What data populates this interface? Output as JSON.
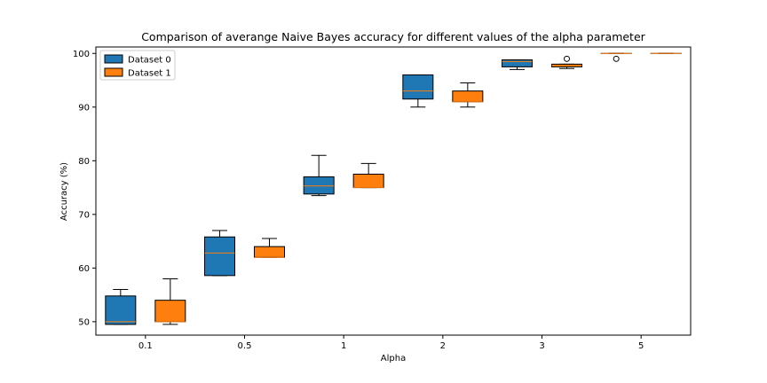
{
  "chart_data": {
    "type": "box",
    "title": "Comparison of averange Naive Bayes accuracy for different values of the alpha parameter",
    "xlabel": "Alpha",
    "ylabel": "Accuracy (%)",
    "categories": [
      "0.1",
      "0.5",
      "1",
      "2",
      "3",
      "5"
    ],
    "ylim": [
      47.5,
      101.2
    ],
    "yticks": [
      50,
      60,
      70,
      80,
      90,
      100
    ],
    "ytick_labels": [
      "50",
      "60",
      "70",
      "80",
      "90",
      "100"
    ],
    "grid": false,
    "legend_position": "upper-left",
    "series": [
      {
        "name": "Dataset 0",
        "color": "#1f77b4",
        "boxes": [
          {
            "whislo": 49.5,
            "q1": 49.5,
            "med": 50.0,
            "q3": 54.8,
            "whishi": 56.0,
            "fliers": []
          },
          {
            "whislo": 58.6,
            "q1": 58.6,
            "med": 62.8,
            "q3": 65.8,
            "whishi": 67.0,
            "fliers": []
          },
          {
            "whislo": 73.5,
            "q1": 73.8,
            "med": 75.3,
            "q3": 77.0,
            "whishi": 81.0,
            "fliers": []
          },
          {
            "whislo": 90.0,
            "q1": 91.5,
            "med": 93.0,
            "q3": 96.0,
            "whishi": 96.0,
            "fliers": []
          },
          {
            "whislo": 97.0,
            "q1": 97.5,
            "med": 98.5,
            "q3": 98.8,
            "whishi": 98.8,
            "fliers": []
          },
          {
            "whislo": 100.0,
            "q1": 100.0,
            "med": 100.0,
            "q3": 100.0,
            "whishi": 100.0,
            "fliers": [
              99.0
            ]
          }
        ]
      },
      {
        "name": "Dataset 1",
        "color": "#ff7f0e",
        "boxes": [
          {
            "whislo": 49.5,
            "q1": 50.0,
            "med": 50.0,
            "q3": 54.0,
            "whishi": 58.0,
            "fliers": []
          },
          {
            "whislo": 62.0,
            "q1": 62.0,
            "med": 62.0,
            "q3": 64.0,
            "whishi": 65.5,
            "fliers": []
          },
          {
            "whislo": 75.0,
            "q1": 75.0,
            "med": 75.0,
            "q3": 77.5,
            "whishi": 79.5,
            "fliers": []
          },
          {
            "whislo": 90.0,
            "q1": 91.0,
            "med": 91.0,
            "q3": 93.0,
            "whishi": 94.5,
            "fliers": []
          },
          {
            "whislo": 97.2,
            "q1": 97.5,
            "med": 97.8,
            "q3": 98.0,
            "whishi": 98.0,
            "fliers": [
              99.0
            ]
          },
          {
            "whislo": 100.0,
            "q1": 100.0,
            "med": 100.0,
            "q3": 100.0,
            "whishi": 100.0,
            "fliers": []
          }
        ]
      }
    ]
  }
}
